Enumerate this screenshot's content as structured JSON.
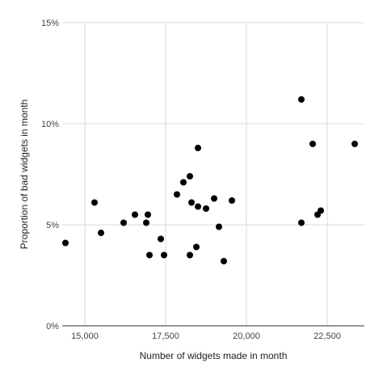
{
  "chart_data": {
    "type": "scatter",
    "xlabel": "Number of widgets made in month",
    "ylabel": "Proportion of bad widgets in month",
    "xlim": [
      14300,
      23650
    ],
    "ylim": [
      0,
      15
    ],
    "x_ticks": [
      {
        "value": 15000,
        "label": "15,000"
      },
      {
        "value": 17500,
        "label": "17,500"
      },
      {
        "value": 20000,
        "label": "20,000"
      },
      {
        "value": 22500,
        "label": "22,500"
      }
    ],
    "y_ticks": [
      {
        "value": 0,
        "label": "0%"
      },
      {
        "value": 5,
        "label": "5%"
      },
      {
        "value": 10,
        "label": "10%"
      },
      {
        "value": 15,
        "label": "15%"
      }
    ],
    "grid": true,
    "series": [
      {
        "color": "#000000",
        "points": [
          {
            "x": 14400,
            "y": 4.1
          },
          {
            "x": 15300,
            "y": 6.1
          },
          {
            "x": 15500,
            "y": 4.6
          },
          {
            "x": 16200,
            "y": 5.1
          },
          {
            "x": 16550,
            "y": 5.5
          },
          {
            "x": 16900,
            "y": 5.1
          },
          {
            "x": 16950,
            "y": 5.5
          },
          {
            "x": 17000,
            "y": 3.5
          },
          {
            "x": 17350,
            "y": 4.3
          },
          {
            "x": 17450,
            "y": 3.5
          },
          {
            "x": 17850,
            "y": 6.5
          },
          {
            "x": 18050,
            "y": 7.1
          },
          {
            "x": 18250,
            "y": 7.4
          },
          {
            "x": 18250,
            "y": 3.5
          },
          {
            "x": 18300,
            "y": 6.1
          },
          {
            "x": 18450,
            "y": 3.9
          },
          {
            "x": 18500,
            "y": 8.8
          },
          {
            "x": 18500,
            "y": 5.9
          },
          {
            "x": 18750,
            "y": 5.8
          },
          {
            "x": 19000,
            "y": 6.3
          },
          {
            "x": 19150,
            "y": 4.9
          },
          {
            "x": 19300,
            "y": 3.2
          },
          {
            "x": 19550,
            "y": 6.2
          },
          {
            "x": 21700,
            "y": 11.2
          },
          {
            "x": 21700,
            "y": 5.1
          },
          {
            "x": 22050,
            "y": 9.0
          },
          {
            "x": 22200,
            "y": 5.5
          },
          {
            "x": 22300,
            "y": 5.7
          },
          {
            "x": 23350,
            "y": 9.0
          }
        ]
      }
    ]
  }
}
